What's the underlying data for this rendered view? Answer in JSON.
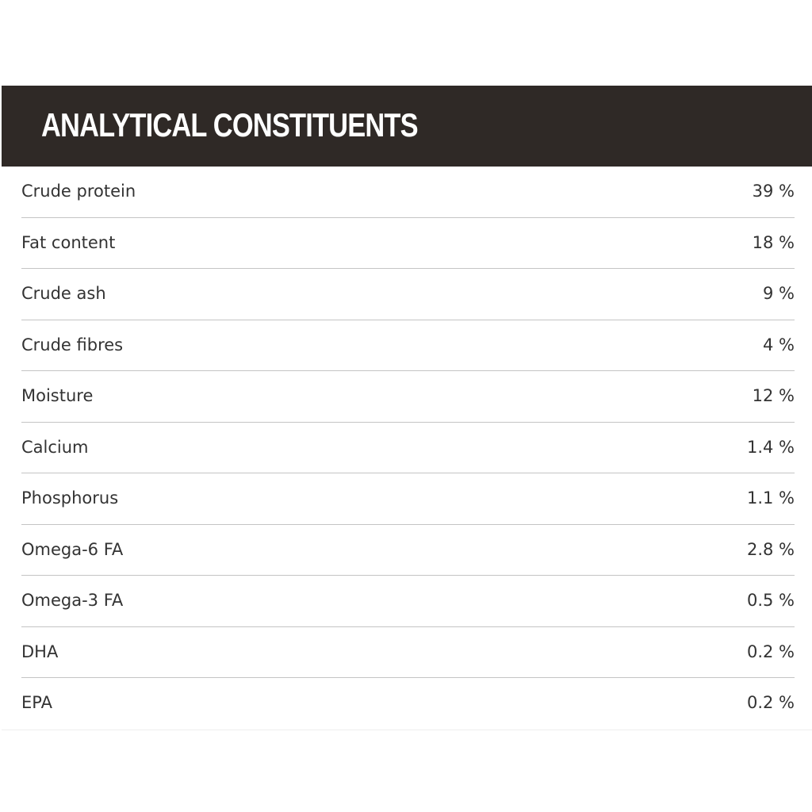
{
  "header": {
    "title": "ANALYTICAL CONSTITUENTS"
  },
  "table": {
    "rows": [
      [
        "Crude protein",
        "39 %"
      ],
      [
        "Fat content",
        "18 %"
      ],
      [
        "Crude ash",
        "9 %"
      ],
      [
        "Crude fibres",
        "4 %"
      ],
      [
        "Moisture",
        "12 %"
      ],
      [
        "Calcium",
        "1.4 %"
      ],
      [
        "Phosphorus",
        "1.1 %"
      ],
      [
        "Omega-6 FA",
        "2.8 %"
      ],
      [
        "Omega-3 FA",
        "0.5 %"
      ],
      [
        "DHA",
        "0.2 %"
      ],
      [
        "EPA",
        "0.2 %"
      ]
    ]
  }
}
